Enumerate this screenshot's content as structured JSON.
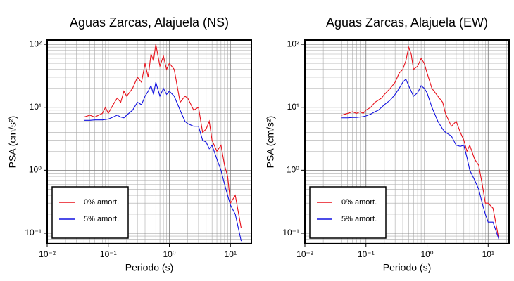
{
  "chart_data": [
    {
      "type": "line",
      "title": "Aguas Zarcas, Alajuela (NS)",
      "xlabel": "Periodo (s)",
      "ylabel": "PSA (cm/s²)",
      "log_x": true,
      "log_y": true,
      "grid": true,
      "minor_grid": true,
      "legend": "lower left",
      "xlim": [
        0.01,
        22
      ],
      "ylim": [
        0.068,
        117
      ],
      "xticks": [
        {
          "value": 0.01,
          "label": "10⁻²"
        },
        {
          "value": 0.1,
          "label": "10⁻¹"
        },
        {
          "value": 1,
          "label": "10⁰"
        },
        {
          "value": 10,
          "label": "10¹"
        }
      ],
      "yticks": [
        {
          "value": 0.1,
          "label": "10⁻¹"
        },
        {
          "value": 1,
          "label": "10⁰"
        },
        {
          "value": 10,
          "label": "10¹"
        },
        {
          "value": 100,
          "label": "10²"
        }
      ],
      "x": [
        0.04,
        0.05,
        0.06,
        0.07,
        0.08,
        0.09,
        0.1,
        0.12,
        0.14,
        0.16,
        0.18,
        0.2,
        0.25,
        0.3,
        0.35,
        0.4,
        0.45,
        0.5,
        0.55,
        0.6,
        0.7,
        0.8,
        0.9,
        1.0,
        1.2,
        1.5,
        1.8,
        2,
        2.5,
        3,
        3.5,
        4,
        4.5,
        5,
        6,
        7,
        8,
        9,
        10,
        12,
        15
      ],
      "series": [
        {
          "name": "0% amort.",
          "color": "#e8101a",
          "values": [
            7,
            7.5,
            7,
            7.5,
            8,
            10,
            8,
            11,
            14,
            12,
            18,
            15,
            20,
            30,
            25,
            50,
            30,
            70,
            55,
            100,
            45,
            65,
            40,
            50,
            40,
            12,
            15,
            14,
            9,
            10,
            4,
            4.5,
            6,
            3,
            2,
            2.5,
            1.2,
            0.8,
            0.3,
            0.4,
            0.12
          ]
        },
        {
          "name": "5% amort.",
          "color": "#1010e0",
          "values": [
            6.2,
            6.2,
            6.3,
            6.3,
            6.3,
            6.4,
            6.5,
            7,
            7.5,
            7,
            6.8,
            7.5,
            9,
            12,
            11,
            15,
            18,
            22,
            16,
            25,
            15,
            20,
            16,
            18,
            15,
            9,
            6,
            5.5,
            5,
            5,
            3,
            2.8,
            2.2,
            2.5,
            1.5,
            1.0,
            0.6,
            0.4,
            0.28,
            0.2,
            0.075
          ]
        }
      ]
    },
    {
      "type": "line",
      "title": "Aguas Zarcas, Alajuela (EW)",
      "xlabel": "Periodo (s)",
      "ylabel": "PSA (cm/s²)",
      "log_x": true,
      "log_y": true,
      "grid": true,
      "minor_grid": true,
      "legend": "lower left",
      "xlim": [
        0.01,
        22
      ],
      "ylim": [
        0.068,
        117
      ],
      "xticks": [
        {
          "value": 0.01,
          "label": "10⁻²"
        },
        {
          "value": 0.1,
          "label": "10⁻¹"
        },
        {
          "value": 1,
          "label": "10⁰"
        },
        {
          "value": 10,
          "label": "10¹"
        }
      ],
      "yticks": [
        {
          "value": 0.1,
          "label": "10⁻¹"
        },
        {
          "value": 1,
          "label": "10⁰"
        },
        {
          "value": 10,
          "label": "10¹"
        },
        {
          "value": 100,
          "label": "10²"
        }
      ],
      "x": [
        0.04,
        0.05,
        0.06,
        0.07,
        0.08,
        0.09,
        0.1,
        0.12,
        0.14,
        0.16,
        0.18,
        0.2,
        0.25,
        0.3,
        0.35,
        0.4,
        0.45,
        0.5,
        0.55,
        0.6,
        0.7,
        0.8,
        0.9,
        1.0,
        1.2,
        1.5,
        1.8,
        2,
        2.5,
        3,
        3.5,
        4,
        4.5,
        5,
        6,
        7,
        8,
        9,
        10,
        12,
        15
      ],
      "series": [
        {
          "name": "0% amort.",
          "color": "#e8101a",
          "values": [
            7.5,
            8,
            8.5,
            8,
            8.5,
            8,
            9,
            10,
            12,
            13,
            14,
            16,
            20,
            25,
            35,
            40,
            55,
            90,
            70,
            40,
            45,
            60,
            50,
            35,
            20,
            15,
            12,
            8,
            5,
            6,
            4,
            3,
            2,
            2.5,
            1.5,
            1.2,
            0.6,
            0.3,
            0.3,
            0.25,
            0.08
          ]
        },
        {
          "name": "5% amort.",
          "color": "#1010e0",
          "values": [
            6.8,
            6.8,
            6.9,
            6.9,
            7,
            7.1,
            7.3,
            7.8,
            8.5,
            9,
            10,
            11,
            13,
            16,
            20,
            25,
            28,
            22,
            18,
            15,
            17,
            22,
            20,
            17,
            10,
            6,
            4.5,
            4,
            3.5,
            2.5,
            2.4,
            2.5,
            1.6,
            1.0,
            0.7,
            0.5,
            0.3,
            0.2,
            0.15,
            0.15,
            0.08
          ]
        }
      ]
    }
  ]
}
